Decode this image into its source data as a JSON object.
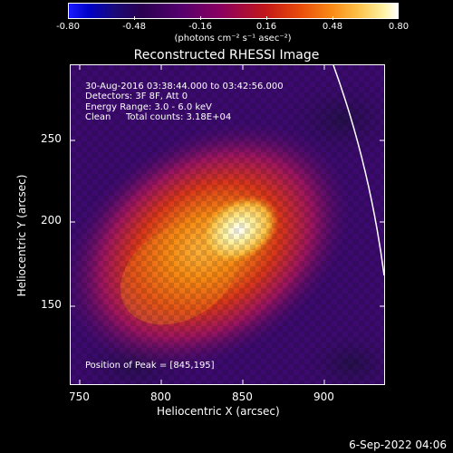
{
  "colorbar": {
    "tick_labels": [
      "-0.80",
      "-0.48",
      "-0.16",
      "0.16",
      "0.48",
      "0.80"
    ],
    "units": "(photons cm⁻² s⁻¹ asec⁻²)"
  },
  "title": "Reconstructed RHESSI Image",
  "info": {
    "time_range": "30-Aug-2016 03:38:44.000 to 03:42:56.000",
    "detectors": "Detectors: 3F 8F, Att 0",
    "energy_range": "Energy Range: 3.0 - 6.0 keV",
    "clean": "Clean",
    "total_counts": "Total counts: 3.18E+04",
    "peak": "Position of Peak = [845,195]"
  },
  "axes": {
    "xlabel": "Heliocentric X (arcsec)",
    "ylabel": "Heliocentric Y (arcsec)",
    "x_ticks": [
      "750",
      "800",
      "850",
      "900"
    ],
    "y_ticks": [
      "250",
      "200",
      "150"
    ],
    "xlim": [
      742,
      937
    ],
    "ylim": [
      100,
      297
    ]
  },
  "timestamp": "6-Sep-2022 04:06",
  "colors": {
    "background": "#000000",
    "foreground": "#ffffff",
    "map_background": "#3c0a6e"
  }
}
